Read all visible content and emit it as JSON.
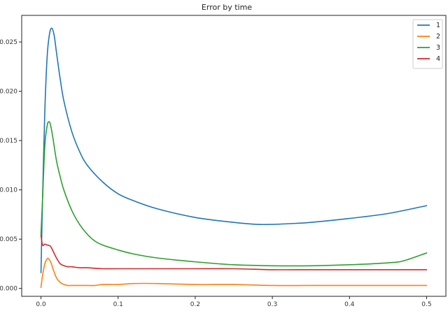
{
  "chart_data": {
    "type": "line",
    "title": "Error by time",
    "xlabel": "",
    "ylabel": "",
    "xlim": [
      -0.025,
      0.525
    ],
    "ylim": [
      -0.0008,
      0.0277
    ],
    "xticks": [
      0.0,
      0.1,
      0.2,
      0.3,
      0.4,
      0.5
    ],
    "xtick_labels": [
      "0.0",
      "0.1",
      "0.2",
      "0.3",
      "0.4",
      "0.5"
    ],
    "yticks": [
      0.0,
      0.005,
      0.01,
      0.015,
      0.02,
      0.025
    ],
    "ytick_labels": [
      "0.000",
      "0.005",
      "0.010",
      "0.015",
      "0.020",
      "0.025"
    ],
    "grid": false,
    "legend_position": "top-right",
    "series": [
      {
        "name": "1",
        "color": "#1f77b4",
        "x": [
          0.0,
          0.002,
          0.005,
          0.008,
          0.011,
          0.014,
          0.017,
          0.02,
          0.025,
          0.03,
          0.04,
          0.05,
          0.06,
          0.08,
          0.1,
          0.12,
          0.15,
          0.2,
          0.25,
          0.28,
          0.3,
          0.33,
          0.35,
          0.4,
          0.45,
          0.5
        ],
        "y": [
          0.0016,
          0.009,
          0.018,
          0.0235,
          0.0258,
          0.0264,
          0.0257,
          0.024,
          0.0212,
          0.0189,
          0.0159,
          0.0139,
          0.0125,
          0.0108,
          0.0096,
          0.0089,
          0.0081,
          0.0072,
          0.0067,
          0.0065,
          0.0065,
          0.0066,
          0.0067,
          0.0071,
          0.0076,
          0.0084
        ]
      },
      {
        "name": "2",
        "color": "#ff7f0e",
        "x": [
          0.0,
          0.002,
          0.005,
          0.008,
          0.01,
          0.013,
          0.016,
          0.02,
          0.025,
          0.03,
          0.035,
          0.04,
          0.05,
          0.06,
          0.07,
          0.08,
          0.1,
          0.12,
          0.15,
          0.2,
          0.25,
          0.3,
          0.35,
          0.4,
          0.45,
          0.5
        ],
        "y": [
          0.0001,
          0.0013,
          0.0025,
          0.003,
          0.003,
          0.0026,
          0.0019,
          0.0011,
          0.0006,
          0.0004,
          0.0003,
          0.0003,
          0.0003,
          0.0003,
          0.0003,
          0.0004,
          0.0004,
          0.0005,
          0.0005,
          0.0004,
          0.0004,
          0.0003,
          0.0003,
          0.0003,
          0.0003,
          0.0003
        ]
      },
      {
        "name": "3",
        "color": "#2ca02c",
        "x": [
          0.0,
          0.002,
          0.005,
          0.008,
          0.01,
          0.012,
          0.015,
          0.02,
          0.025,
          0.03,
          0.04,
          0.05,
          0.06,
          0.07,
          0.08,
          0.1,
          0.12,
          0.15,
          0.2,
          0.25,
          0.3,
          0.35,
          0.4,
          0.45,
          0.47,
          0.5
        ],
        "y": [
          0.0055,
          0.009,
          0.0145,
          0.0165,
          0.0169,
          0.0167,
          0.0155,
          0.013,
          0.0113,
          0.0099,
          0.0079,
          0.0065,
          0.0055,
          0.0048,
          0.0044,
          0.0039,
          0.0035,
          0.0031,
          0.0027,
          0.0024,
          0.0023,
          0.0023,
          0.0024,
          0.0026,
          0.0028,
          0.0036
        ]
      },
      {
        "name": "4",
        "color": "#d62728",
        "x": [
          0.0,
          0.002,
          0.005,
          0.008,
          0.012,
          0.015,
          0.02,
          0.025,
          0.03,
          0.035,
          0.04,
          0.05,
          0.06,
          0.08,
          0.1,
          0.15,
          0.2,
          0.25,
          0.3,
          0.35,
          0.4,
          0.45,
          0.5
        ],
        "y": [
          0.0054,
          0.0044,
          0.0045,
          0.0044,
          0.0043,
          0.0039,
          0.0031,
          0.0025,
          0.0023,
          0.0022,
          0.0022,
          0.0021,
          0.0021,
          0.002,
          0.002,
          0.002,
          0.002,
          0.002,
          0.0019,
          0.0019,
          0.0019,
          0.0019,
          0.0019
        ]
      }
    ]
  }
}
